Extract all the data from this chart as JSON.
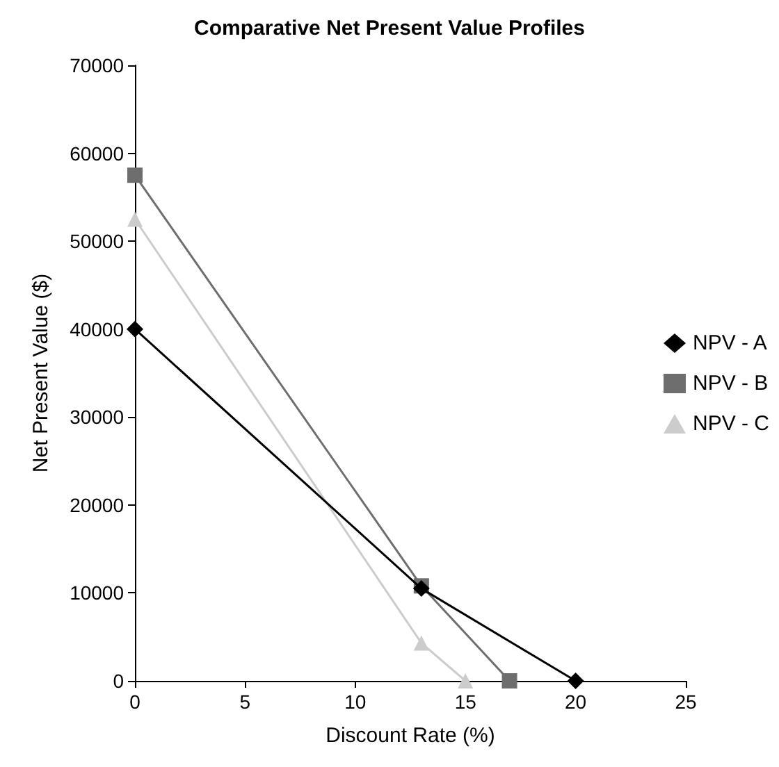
{
  "chart_data": {
    "type": "line",
    "title": "Comparative Net Present Value Profiles",
    "xlabel": "Discount Rate (%)",
    "ylabel": "Net Present Value ($)",
    "series": [
      {
        "name": "NPV - A",
        "color": "#000000",
        "marker": "diamond",
        "x": [
          0,
          13,
          20
        ],
        "values": [
          40000,
          10500,
          0
        ]
      },
      {
        "name": "NPV - B",
        "color": "#6e6e6e",
        "marker": "square",
        "x": [
          0,
          13,
          17
        ],
        "values": [
          57500,
          10800,
          0
        ]
      },
      {
        "name": "NPV - C",
        "color": "#cccccc",
        "marker": "triangle",
        "x": [
          0,
          13,
          15
        ],
        "values": [
          52500,
          4300,
          0
        ]
      }
    ],
    "xlim": [
      0,
      25
    ],
    "xticks": [
      0,
      5,
      10,
      15,
      20,
      25
    ],
    "ylim": [
      0,
      70000
    ],
    "yticks": [
      0,
      10000,
      20000,
      30000,
      40000,
      50000,
      60000,
      70000
    ],
    "grid": false,
    "legend": "right",
    "line_style": "solid"
  }
}
